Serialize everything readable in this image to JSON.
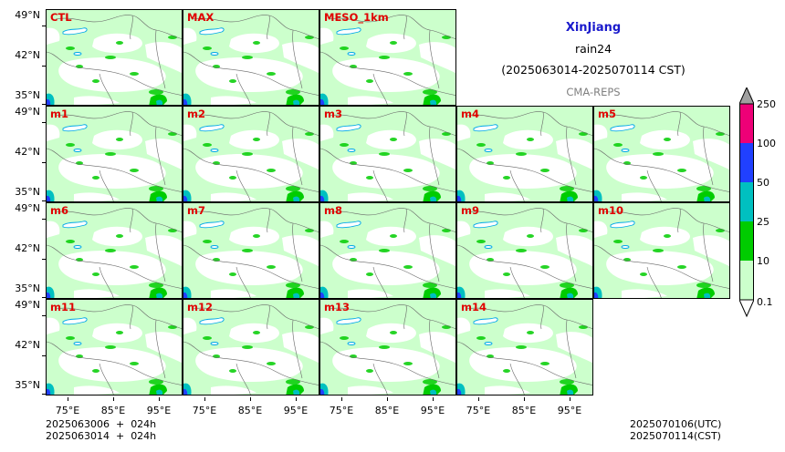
{
  "header": {
    "region": "XinJiang",
    "variable": "rain24",
    "period": "(2025063014-2025070114 CST)",
    "model": "CMA-REPS"
  },
  "panels": [
    "CTL",
    "MAX",
    "MESO_1km",
    "m1",
    "m2",
    "m3",
    "m4",
    "m5",
    "m6",
    "m7",
    "m8",
    "m9",
    "m10",
    "m11",
    "m12",
    "m13",
    "m14"
  ],
  "lat_ticks": [
    "49°N",
    "42°N",
    "35°N"
  ],
  "lon_ticks": [
    "75°E",
    "85°E",
    "95°E"
  ],
  "init_info": {
    "line1": "2025063006  +  024h",
    "line2": "2025063014  +  024h"
  },
  "valid_info": {
    "utc": "2025070106(UTC)",
    "cst": "2025070114(CST)"
  },
  "colorbar": {
    "levels": [
      "0.1",
      "10",
      "25",
      "50",
      "100",
      "250"
    ],
    "colors": [
      "#ccffcc",
      "#00cc00",
      "#00c0c0",
      "#2040ff",
      "#ee0077"
    ],
    "over_color": "#a0a0a0",
    "under_color": "#ffffff"
  },
  "colors": {
    "label_red": "#e00000",
    "title_blue": "#1a1acc",
    "subtitle_gray": "#808080",
    "lake_blue": "#00a8e8"
  }
}
